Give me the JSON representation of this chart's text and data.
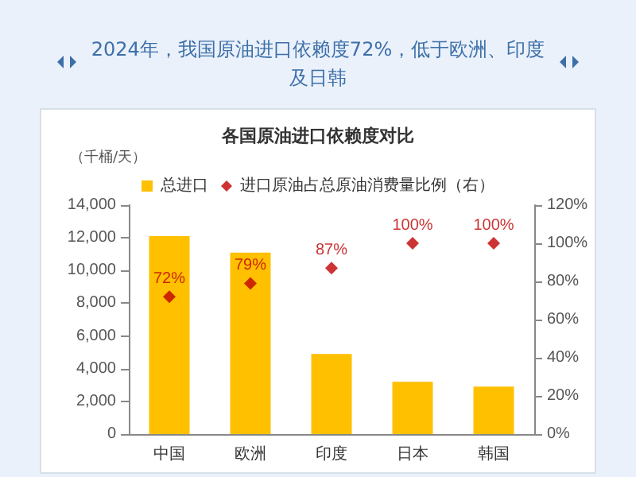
{
  "chart_data": {
    "type": "bar",
    "title": "2024年，我国原油进口依赖度72%，低于欧洲、印度及日韩",
    "subtitle": "各国原油进口依赖度对比",
    "ylabel": "（千桶/天）",
    "categories": [
      "中国",
      "欧洲",
      "印度",
      "日本",
      "韩国"
    ],
    "series": [
      {
        "name": "总进口",
        "color": "#ffc000",
        "values": [
          12100,
          11100,
          4900,
          3200,
          2900
        ]
      },
      {
        "name": "进口原油占总原油消费量比例（右）",
        "type": "scatter",
        "axis": "y2",
        "color": "#c00000",
        "values": [
          72,
          79,
          87,
          100,
          100
        ],
        "value_labels": [
          "72%",
          "79%",
          "87%",
          "100%",
          "100%"
        ]
      }
    ],
    "ylim": [
      0,
      14000
    ],
    "yticks": [
      {
        "value": 0,
        "label": "0"
      },
      {
        "value": 2000,
        "label": "2,000"
      },
      {
        "value": 4000,
        "label": "4,000"
      },
      {
        "value": 6000,
        "label": "6,000"
      },
      {
        "value": 8000,
        "label": "8,000"
      },
      {
        "value": 10000,
        "label": "10,000"
      },
      {
        "value": 12000,
        "label": "12,000"
      },
      {
        "value": 14000,
        "label": "14,000"
      }
    ],
    "y2lim": [
      0,
      120
    ],
    "y2ticks": [
      {
        "value": 0,
        "label": "0%"
      },
      {
        "value": 20,
        "label": "20%"
      },
      {
        "value": 40,
        "label": "40%"
      },
      {
        "value": 60,
        "label": "60%"
      },
      {
        "value": 80,
        "label": "80%"
      },
      {
        "value": 100,
        "label": "100%"
      },
      {
        "value": 120,
        "label": "120%"
      }
    ],
    "legend": "top",
    "grid": false,
    "marker": "diamond"
  }
}
